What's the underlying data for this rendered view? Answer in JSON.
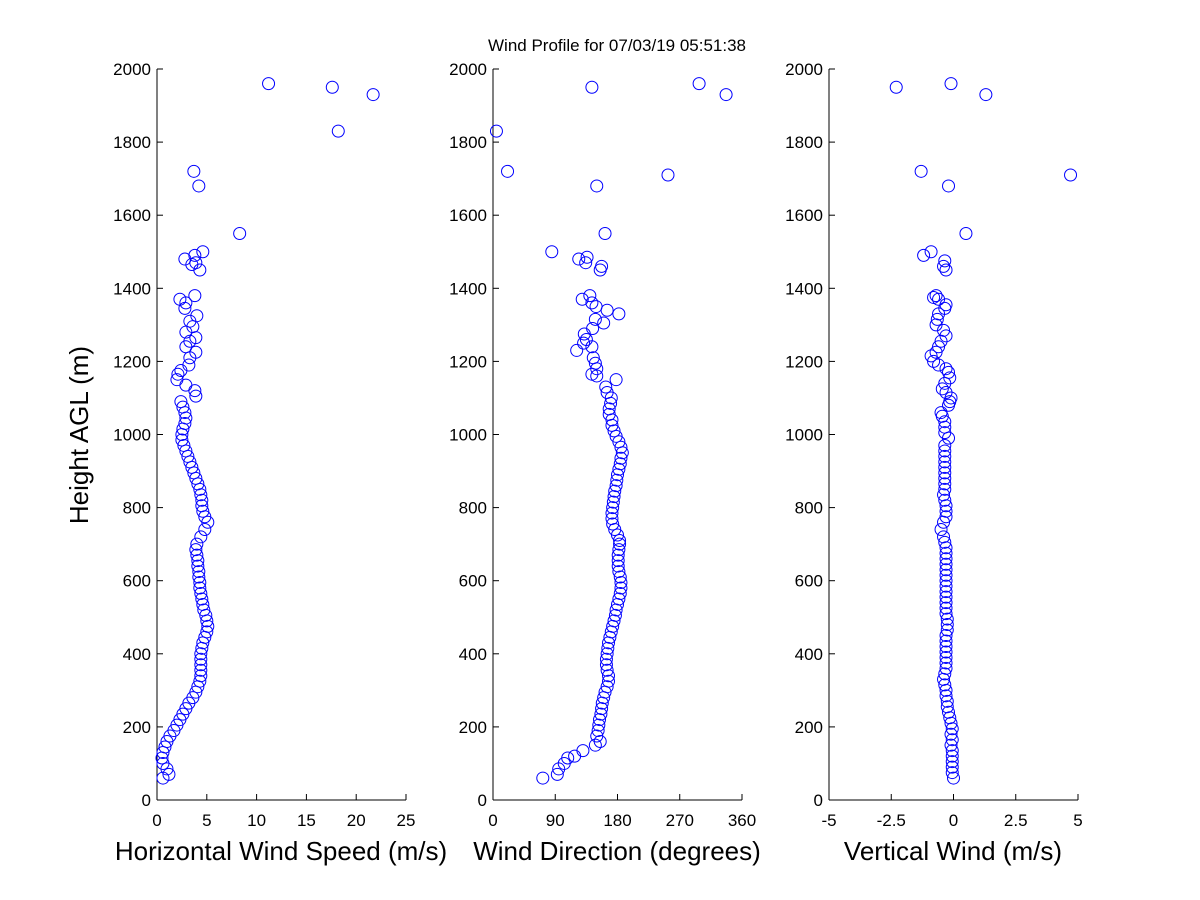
{
  "figure": {
    "title": "Wind Profile for  07/03/19 05:51:38",
    "marker_color": "#0000ff",
    "axis_color": "#000000",
    "background": "#ffffff"
  },
  "chart_data": [
    {
      "type": "scatter",
      "xlabel": "Horizontal Wind Speed (m/s)",
      "ylabel": "Height AGL (m)",
      "xlim": [
        0,
        25
      ],
      "ylim": [
        0,
        2000
      ],
      "xticks": [
        0,
        5,
        10,
        15,
        20,
        25
      ],
      "xtick_labels": [
        "0",
        "5",
        "10",
        "15",
        "20",
        "25"
      ],
      "yticks": [
        0,
        200,
        400,
        600,
        800,
        1000,
        1200,
        1400,
        1600,
        1800,
        2000
      ],
      "ytick_labels": [
        "0",
        "200",
        "400",
        "600",
        "800",
        "1000",
        "1200",
        "1400",
        "1600",
        "1800",
        "2000"
      ],
      "marker": "open-circle",
      "points": [
        [
          0.6,
          60
        ],
        [
          1.2,
          70
        ],
        [
          1.0,
          85
        ],
        [
          0.6,
          100
        ],
        [
          0.5,
          115
        ],
        [
          0.6,
          130
        ],
        [
          0.8,
          145
        ],
        [
          1.0,
          160
        ],
        [
          1.3,
          175
        ],
        [
          1.7,
          190
        ],
        [
          2.0,
          205
        ],
        [
          2.3,
          220
        ],
        [
          2.6,
          235
        ],
        [
          2.9,
          250
        ],
        [
          3.2,
          265
        ],
        [
          3.6,
          280
        ],
        [
          3.9,
          295
        ],
        [
          4.1,
          310
        ],
        [
          4.3,
          325
        ],
        [
          4.4,
          340
        ],
        [
          4.4,
          355
        ],
        [
          4.4,
          370
        ],
        [
          4.4,
          385
        ],
        [
          4.4,
          400
        ],
        [
          4.5,
          415
        ],
        [
          4.6,
          430
        ],
        [
          4.8,
          445
        ],
        [
          5.0,
          460
        ],
        [
          5.1,
          475
        ],
        [
          5.0,
          490
        ],
        [
          4.9,
          505
        ],
        [
          4.7,
          520
        ],
        [
          4.6,
          535
        ],
        [
          4.5,
          550
        ],
        [
          4.4,
          565
        ],
        [
          4.3,
          580
        ],
        [
          4.3,
          595
        ],
        [
          4.2,
          610
        ],
        [
          4.2,
          625
        ],
        [
          4.1,
          640
        ],
        [
          4.1,
          655
        ],
        [
          4.0,
          670
        ],
        [
          3.9,
          685
        ],
        [
          4.0,
          700
        ],
        [
          4.4,
          720
        ],
        [
          4.8,
          740
        ],
        [
          5.1,
          760
        ],
        [
          4.8,
          775
        ],
        [
          4.6,
          790
        ],
        [
          4.5,
          805
        ],
        [
          4.5,
          820
        ],
        [
          4.4,
          835
        ],
        [
          4.3,
          850
        ],
        [
          4.1,
          865
        ],
        [
          3.9,
          880
        ],
        [
          3.7,
          895
        ],
        [
          3.5,
          910
        ],
        [
          3.3,
          925
        ],
        [
          3.1,
          940
        ],
        [
          2.9,
          955
        ],
        [
          2.7,
          970
        ],
        [
          2.5,
          985
        ],
        [
          2.5,
          1000
        ],
        [
          2.6,
          1015
        ],
        [
          2.8,
          1030
        ],
        [
          2.9,
          1045
        ],
        [
          2.8,
          1060
        ],
        [
          2.6,
          1075
        ],
        [
          2.4,
          1090
        ],
        [
          3.9,
          1105
        ],
        [
          3.8,
          1120
        ],
        [
          2.9,
          1135
        ],
        [
          2.0,
          1150
        ],
        [
          2.1,
          1165
        ],
        [
          2.4,
          1175
        ],
        [
          3.2,
          1190
        ],
        [
          3.3,
          1210
        ],
        [
          3.9,
          1225
        ],
        [
          2.9,
          1240
        ],
        [
          3.3,
          1255
        ],
        [
          3.9,
          1265
        ],
        [
          2.9,
          1280
        ],
        [
          3.6,
          1295
        ],
        [
          3.3,
          1310
        ],
        [
          4.0,
          1325
        ],
        [
          2.8,
          1345
        ],
        [
          2.9,
          1360
        ],
        [
          2.3,
          1370
        ],
        [
          3.8,
          1380
        ],
        [
          4.3,
          1450
        ],
        [
          3.5,
          1465
        ],
        [
          3.9,
          1470
        ],
        [
          2.8,
          1480
        ],
        [
          3.8,
          1490
        ],
        [
          4.6,
          1500
        ],
        [
          8.3,
          1550
        ],
        [
          4.2,
          1680
        ],
        [
          3.7,
          1720
        ],
        [
          18.2,
          1830
        ],
        [
          21.7,
          1930
        ],
        [
          17.6,
          1950
        ],
        [
          11.2,
          1960
        ]
      ]
    },
    {
      "type": "scatter",
      "xlabel": "Wind Direction (degrees)",
      "ylabel": "",
      "xlim": [
        0,
        360
      ],
      "ylim": [
        0,
        2000
      ],
      "xticks": [
        0,
        90,
        180,
        270,
        360
      ],
      "xtick_labels": [
        "0",
        "90",
        "180",
        "270",
        "360"
      ],
      "yticks": [
        0,
        200,
        400,
        600,
        800,
        1000,
        1200,
        1400,
        1600,
        1800,
        2000
      ],
      "ytick_labels": [
        "0",
        "200",
        "400",
        "600",
        "800",
        "1000",
        "1200",
        "1400",
        "1600",
        "1800",
        "2000"
      ],
      "marker": "open-circle",
      "points": [
        [
          72,
          60
        ],
        [
          93,
          70
        ],
        [
          95,
          85
        ],
        [
          103,
          100
        ],
        [
          108,
          115
        ],
        [
          118,
          120
        ],
        [
          130,
          135
        ],
        [
          148,
          150
        ],
        [
          155,
          160
        ],
        [
          150,
          175
        ],
        [
          152,
          190
        ],
        [
          153,
          205
        ],
        [
          154,
          220
        ],
        [
          156,
          235
        ],
        [
          157,
          250
        ],
        [
          158,
          265
        ],
        [
          160,
          280
        ],
        [
          162,
          295
        ],
        [
          165,
          310
        ],
        [
          167,
          325
        ],
        [
          167,
          340
        ],
        [
          165,
          355
        ],
        [
          164,
          370
        ],
        [
          164,
          385
        ],
        [
          165,
          400
        ],
        [
          166,
          415
        ],
        [
          167,
          430
        ],
        [
          169,
          445
        ],
        [
          171,
          460
        ],
        [
          173,
          475
        ],
        [
          175,
          490
        ],
        [
          177,
          505
        ],
        [
          178,
          520
        ],
        [
          180,
          535
        ],
        [
          182,
          550
        ],
        [
          184,
          565
        ],
        [
          185,
          580
        ],
        [
          185,
          595
        ],
        [
          184,
          610
        ],
        [
          182,
          625
        ],
        [
          181,
          640
        ],
        [
          181,
          655
        ],
        [
          181,
          670
        ],
        [
          182,
          685
        ],
        [
          183,
          700
        ],
        [
          183,
          710
        ],
        [
          180,
          725
        ],
        [
          176,
          740
        ],
        [
          173,
          755
        ],
        [
          172,
          770
        ],
        [
          172,
          785
        ],
        [
          173,
          800
        ],
        [
          174,
          815
        ],
        [
          175,
          830
        ],
        [
          176,
          845
        ],
        [
          178,
          860
        ],
        [
          179,
          875
        ],
        [
          180,
          890
        ],
        [
          182,
          905
        ],
        [
          184,
          920
        ],
        [
          185,
          935
        ],
        [
          187,
          950
        ],
        [
          185,
          965
        ],
        [
          182,
          980
        ],
        [
          178,
          995
        ],
        [
          175,
          1010
        ],
        [
          172,
          1025
        ],
        [
          172,
          1040
        ],
        [
          168,
          1055
        ],
        [
          168,
          1070
        ],
        [
          170,
          1085
        ],
        [
          171,
          1100
        ],
        [
          165,
          1115
        ],
        [
          163,
          1130
        ],
        [
          178,
          1150
        ],
        [
          150,
          1160
        ],
        [
          143,
          1165
        ],
        [
          150,
          1180
        ],
        [
          148,
          1195
        ],
        [
          145,
          1210
        ],
        [
          121,
          1230
        ],
        [
          143,
          1240
        ],
        [
          131,
          1250
        ],
        [
          135,
          1260
        ],
        [
          132,
          1275
        ],
        [
          144,
          1290
        ],
        [
          160,
          1305
        ],
        [
          148,
          1315
        ],
        [
          182,
          1330
        ],
        [
          165,
          1340
        ],
        [
          149,
          1350
        ],
        [
          143,
          1360
        ],
        [
          129,
          1370
        ],
        [
          140,
          1380
        ],
        [
          155,
          1450
        ],
        [
          157,
          1460
        ],
        [
          134,
          1470
        ],
        [
          124,
          1480
        ],
        [
          136,
          1485
        ],
        [
          85,
          1500
        ],
        [
          162,
          1550
        ],
        [
          150,
          1680
        ],
        [
          253,
          1710
        ],
        [
          21,
          1720
        ],
        [
          5,
          1830
        ],
        [
          337,
          1930
        ],
        [
          143,
          1950
        ],
        [
          298,
          1960
        ]
      ]
    },
    {
      "type": "scatter",
      "xlabel": "Vertical Wind (m/s)",
      "ylabel": "",
      "xlim": [
        -5,
        5
      ],
      "ylim": [
        0,
        2000
      ],
      "xticks": [
        -5,
        -2.5,
        0,
        2.5,
        5
      ],
      "xtick_labels": [
        "-5",
        "-2.5",
        "0",
        "2.5",
        "5"
      ],
      "yticks": [
        0,
        200,
        400,
        600,
        800,
        1000,
        1200,
        1400,
        1600,
        1800,
        2000
      ],
      "ytick_labels": [
        "0",
        "200",
        "400",
        "600",
        "800",
        "1000",
        "1200",
        "1400",
        "1600",
        "1800",
        "2000"
      ],
      "marker": "open-circle",
      "points": [
        [
          0.0,
          60
        ],
        [
          -0.05,
          75
        ],
        [
          -0.05,
          90
        ],
        [
          -0.05,
          105
        ],
        [
          -0.05,
          120
        ],
        [
          -0.05,
          135
        ],
        [
          -0.1,
          150
        ],
        [
          -0.05,
          165
        ],
        [
          -0.1,
          180
        ],
        [
          -0.05,
          195
        ],
        [
          -0.1,
          210
        ],
        [
          -0.15,
          225
        ],
        [
          -0.2,
          240
        ],
        [
          -0.25,
          255
        ],
        [
          -0.25,
          270
        ],
        [
          -0.3,
          285
        ],
        [
          -0.3,
          300
        ],
        [
          -0.35,
          315
        ],
        [
          -0.4,
          330
        ],
        [
          -0.35,
          345
        ],
        [
          -0.3,
          360
        ],
        [
          -0.3,
          375
        ],
        [
          -0.3,
          390
        ],
        [
          -0.3,
          405
        ],
        [
          -0.3,
          420
        ],
        [
          -0.3,
          435
        ],
        [
          -0.3,
          450
        ],
        [
          -0.25,
          465
        ],
        [
          -0.25,
          480
        ],
        [
          -0.25,
          495
        ],
        [
          -0.3,
          510
        ],
        [
          -0.3,
          525
        ],
        [
          -0.3,
          540
        ],
        [
          -0.3,
          555
        ],
        [
          -0.3,
          570
        ],
        [
          -0.3,
          585
        ],
        [
          -0.3,
          600
        ],
        [
          -0.3,
          615
        ],
        [
          -0.3,
          630
        ],
        [
          -0.3,
          645
        ],
        [
          -0.3,
          660
        ],
        [
          -0.3,
          675
        ],
        [
          -0.3,
          690
        ],
        [
          -0.35,
          705
        ],
        [
          -0.4,
          720
        ],
        [
          -0.5,
          740
        ],
        [
          -0.4,
          760
        ],
        [
          -0.3,
          775
        ],
        [
          -0.3,
          790
        ],
        [
          -0.3,
          805
        ],
        [
          -0.35,
          820
        ],
        [
          -0.4,
          835
        ],
        [
          -0.35,
          850
        ],
        [
          -0.35,
          865
        ],
        [
          -0.35,
          880
        ],
        [
          -0.35,
          895
        ],
        [
          -0.35,
          910
        ],
        [
          -0.35,
          925
        ],
        [
          -0.35,
          940
        ],
        [
          -0.35,
          955
        ],
        [
          -0.35,
          970
        ],
        [
          -0.2,
          990
        ],
        [
          -0.35,
          1005
        ],
        [
          -0.35,
          1020
        ],
        [
          -0.35,
          1035
        ],
        [
          -0.45,
          1050
        ],
        [
          -0.5,
          1060
        ],
        [
          -0.2,
          1080
        ],
        [
          -0.15,
          1090
        ],
        [
          -0.1,
          1100
        ],
        [
          -0.3,
          1115
        ],
        [
          -0.45,
          1125
        ],
        [
          -0.35,
          1140
        ],
        [
          -0.15,
          1155
        ],
        [
          -0.2,
          1170
        ],
        [
          -0.3,
          1180
        ],
        [
          -0.6,
          1190
        ],
        [
          -0.8,
          1200
        ],
        [
          -0.9,
          1215
        ],
        [
          -0.7,
          1225
        ],
        [
          -0.6,
          1240
        ],
        [
          -0.5,
          1255
        ],
        [
          -0.3,
          1270
        ],
        [
          -0.4,
          1285
        ],
        [
          -0.7,
          1300
        ],
        [
          -0.65,
          1315
        ],
        [
          -0.6,
          1330
        ],
        [
          -0.35,
          1345
        ],
        [
          -0.3,
          1355
        ],
        [
          -0.6,
          1370
        ],
        [
          -0.8,
          1375
        ],
        [
          -0.7,
          1380
        ],
        [
          -0.3,
          1450
        ],
        [
          -0.4,
          1460
        ],
        [
          -0.35,
          1475
        ],
        [
          -1.2,
          1490
        ],
        [
          -0.9,
          1500
        ],
        [
          0.5,
          1550
        ],
        [
          -0.2,
          1680
        ],
        [
          4.7,
          1710
        ],
        [
          -1.3,
          1720
        ],
        [
          1.3,
          1930
        ],
        [
          -2.3,
          1950
        ],
        [
          -0.1,
          1960
        ]
      ]
    }
  ]
}
